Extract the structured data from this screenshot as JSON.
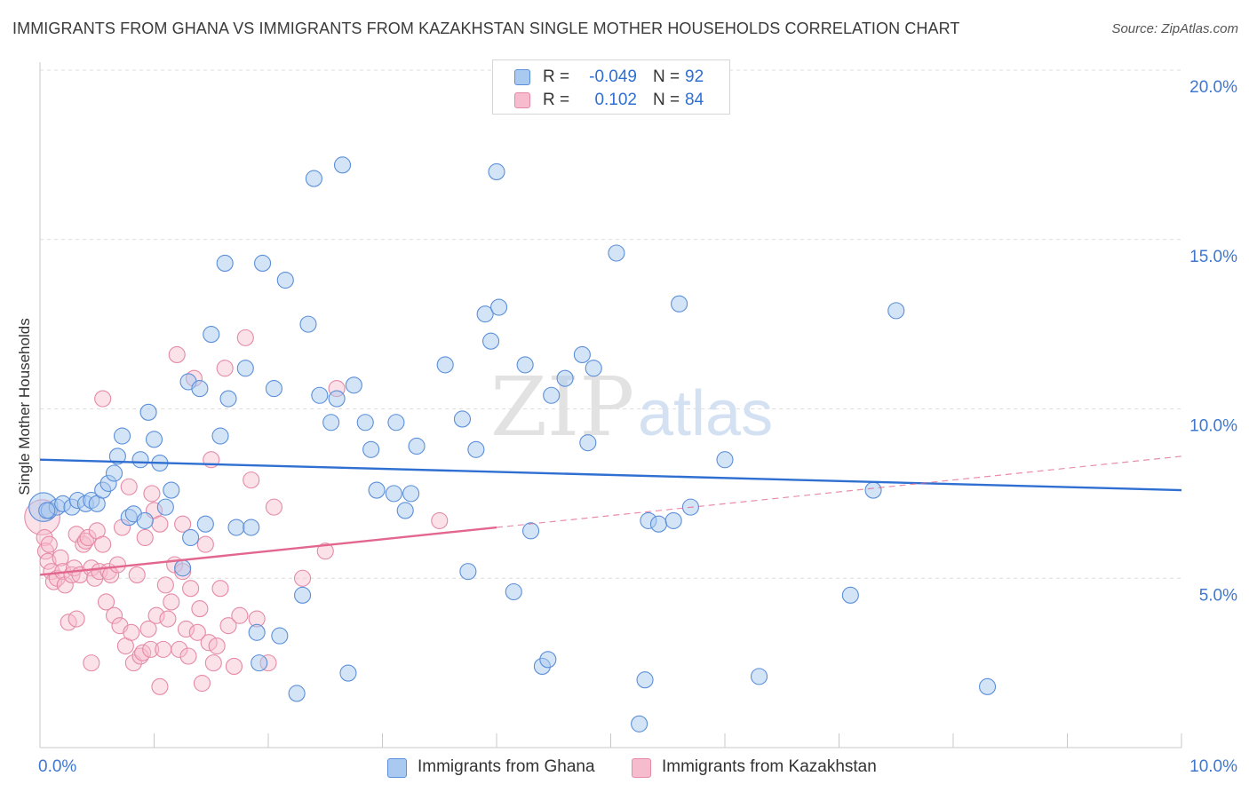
{
  "title": "IMMIGRANTS FROM GHANA VS IMMIGRANTS FROM KAZAKHSTAN SINGLE MOTHER HOUSEHOLDS CORRELATION CHART",
  "source": "Source: ZipAtlas.com",
  "colors": {
    "blue_fill": "#aac9f0",
    "blue_stroke": "#5b8fd9",
    "blue_line": "#2f6fd1",
    "pink_fill": "#f6bccd",
    "pink_stroke": "#e58aa6",
    "pink_line": "#e2668e",
    "axis_label": "#3f77d0",
    "grid": "#dedede"
  },
  "legend": {
    "rows": [
      {
        "r_label": "R =",
        "r_value": "-0.049",
        "n_label": "N =",
        "n_value": "92"
      },
      {
        "r_label": "R =",
        "r_value": "0.102",
        "n_label": "N =",
        "n_value": "84"
      }
    ]
  },
  "bottom_legend": {
    "ghana": "Immigrants from Ghana",
    "kazakhstan": "Immigrants from Kazakhstan"
  },
  "chart_data": {
    "type": "scatter",
    "title": "IMMIGRANTS FROM GHANA VS IMMIGRANTS FROM KAZAKHSTAN SINGLE MOTHER HOUSEHOLDS CORRELATION CHART",
    "xlabel": "",
    "ylabel": "Single Mother Households",
    "xlim": [
      0,
      10
    ],
    "ylim": [
      0,
      20
    ],
    "x_tick_labels": {
      "0": "0.0%",
      "10": "10.0%"
    },
    "y_ticks": [
      5,
      10,
      15,
      20
    ],
    "y_tick_labels": [
      "5.0%",
      "10.0%",
      "15.0%",
      "20.0%"
    ],
    "watermark": {
      "zip": "ZIP",
      "atlas": "atlas"
    },
    "series": [
      {
        "name": "Immigrants from Ghana",
        "color": "blue",
        "R": -0.049,
        "N": 92,
        "trend": {
          "x0": 0,
          "y0": 8.5,
          "x1": 10,
          "y1": 7.6
        },
        "points": [
          [
            0.03,
            7.1,
            1.8
          ],
          [
            0.08,
            7.0,
            1
          ],
          [
            0.15,
            7.1,
            1
          ],
          [
            0.2,
            7.2,
            1
          ],
          [
            0.28,
            7.1,
            1
          ],
          [
            0.33,
            7.3,
            1
          ],
          [
            0.4,
            7.2,
            1
          ],
          [
            0.45,
            7.3,
            1
          ],
          [
            0.5,
            7.2,
            1
          ],
          [
            0.55,
            7.6,
            1
          ],
          [
            0.6,
            7.8,
            1
          ],
          [
            0.65,
            8.1,
            1
          ],
          [
            0.68,
            8.6,
            1
          ],
          [
            0.72,
            9.2,
            1
          ],
          [
            0.78,
            6.8,
            1
          ],
          [
            0.82,
            6.9,
            1
          ],
          [
            0.88,
            8.5,
            1
          ],
          [
            0.92,
            6.7,
            1
          ],
          [
            0.95,
            9.9,
            1
          ],
          [
            1.0,
            9.1,
            1
          ],
          [
            1.05,
            8.4,
            1
          ],
          [
            1.1,
            7.1,
            1
          ],
          [
            1.15,
            7.6,
            1
          ],
          [
            1.25,
            5.3,
            1
          ],
          [
            1.3,
            10.8,
            1
          ],
          [
            1.32,
            6.2,
            1
          ],
          [
            1.4,
            10.6,
            1
          ],
          [
            1.45,
            6.6,
            1
          ],
          [
            1.5,
            12.2,
            1
          ],
          [
            1.58,
            9.2,
            1
          ],
          [
            1.62,
            14.3,
            1
          ],
          [
            1.65,
            10.3,
            1
          ],
          [
            1.72,
            6.5,
            1
          ],
          [
            1.8,
            11.2,
            1
          ],
          [
            1.85,
            6.5,
            1
          ],
          [
            1.9,
            3.4,
            1
          ],
          [
            1.92,
            2.5,
            1
          ],
          [
            1.95,
            14.3,
            1
          ],
          [
            2.05,
            10.6,
            1
          ],
          [
            2.1,
            3.3,
            1
          ],
          [
            2.15,
            13.8,
            1
          ],
          [
            2.25,
            1.6,
            1
          ],
          [
            2.3,
            4.5,
            1
          ],
          [
            2.35,
            12.5,
            1
          ],
          [
            2.4,
            16.8,
            1
          ],
          [
            2.45,
            10.4,
            1
          ],
          [
            2.55,
            9.6,
            1
          ],
          [
            2.6,
            10.3,
            1
          ],
          [
            2.65,
            17.2,
            1
          ],
          [
            2.7,
            2.2,
            1
          ],
          [
            2.75,
            10.7,
            1
          ],
          [
            2.85,
            9.6,
            1
          ],
          [
            2.9,
            8.8,
            1
          ],
          [
            2.95,
            7.6,
            1
          ],
          [
            3.1,
            7.5,
            1
          ],
          [
            3.12,
            9.6,
            1
          ],
          [
            3.2,
            7.0,
            1
          ],
          [
            3.25,
            7.5,
            1
          ],
          [
            3.3,
            8.9,
            1
          ],
          [
            3.55,
            11.3,
            1
          ],
          [
            3.7,
            9.7,
            1
          ],
          [
            3.75,
            5.2,
            1
          ],
          [
            3.82,
            8.8,
            1
          ],
          [
            3.9,
            12.8,
            1
          ],
          [
            3.95,
            12.0,
            1
          ],
          [
            4.0,
            17.0,
            1
          ],
          [
            4.02,
            13.0,
            1
          ],
          [
            4.15,
            4.6,
            1
          ],
          [
            4.25,
            11.3,
            1
          ],
          [
            4.3,
            6.4,
            1
          ],
          [
            4.4,
            2.4,
            1
          ],
          [
            4.45,
            2.6,
            1
          ],
          [
            4.48,
            10.4,
            1
          ],
          [
            4.6,
            10.9,
            1
          ],
          [
            4.75,
            11.6,
            1
          ],
          [
            4.8,
            9.0,
            1
          ],
          [
            4.85,
            11.2,
            1
          ],
          [
            5.05,
            14.6,
            1
          ],
          [
            5.25,
            0.7,
            1
          ],
          [
            5.3,
            2.0,
            1
          ],
          [
            5.33,
            6.7,
            1
          ],
          [
            5.42,
            6.6,
            1
          ],
          [
            5.55,
            6.7,
            1
          ],
          [
            5.6,
            13.1,
            1
          ],
          [
            5.7,
            7.1,
            1
          ],
          [
            6.0,
            8.5,
            1
          ],
          [
            6.3,
            2.1,
            1
          ],
          [
            7.1,
            4.5,
            1
          ],
          [
            7.3,
            7.6,
            1
          ],
          [
            7.5,
            12.9,
            1
          ],
          [
            8.3,
            1.8,
            1
          ],
          [
            0.06,
            7.0,
            1
          ]
        ]
      },
      {
        "name": "Immigrants from Kazakhstan",
        "color": "pink",
        "R": 0.102,
        "N": 84,
        "trend": {
          "x0": 0,
          "y0": 5.1,
          "x1": 10,
          "y1": 8.6
        },
        "trend_solid_until": 4.0,
        "points": [
          [
            0.02,
            6.8,
            2.2
          ],
          [
            0.04,
            6.2,
            1
          ],
          [
            0.05,
            5.8,
            1
          ],
          [
            0.07,
            5.5,
            1
          ],
          [
            0.1,
            5.2,
            1
          ],
          [
            0.12,
            4.9,
            1
          ],
          [
            0.15,
            5.0,
            1
          ],
          [
            0.18,
            5.6,
            1
          ],
          [
            0.2,
            5.2,
            1
          ],
          [
            0.22,
            4.8,
            1
          ],
          [
            0.25,
            3.7,
            1
          ],
          [
            0.28,
            5.1,
            1
          ],
          [
            0.3,
            5.3,
            1
          ],
          [
            0.32,
            6.3,
            1
          ],
          [
            0.35,
            5.1,
            1
          ],
          [
            0.38,
            6.0,
            1
          ],
          [
            0.4,
            6.1,
            1
          ],
          [
            0.42,
            6.2,
            1
          ],
          [
            0.45,
            5.3,
            1
          ],
          [
            0.48,
            5.0,
            1
          ],
          [
            0.5,
            6.4,
            1
          ],
          [
            0.52,
            5.2,
            1
          ],
          [
            0.55,
            6.0,
            1
          ],
          [
            0.58,
            4.3,
            1
          ],
          [
            0.6,
            5.2,
            1
          ],
          [
            0.62,
            5.1,
            1
          ],
          [
            0.65,
            3.9,
            1
          ],
          [
            0.68,
            5.4,
            1
          ],
          [
            0.7,
            3.6,
            1
          ],
          [
            0.72,
            6.5,
            1
          ],
          [
            0.75,
            3.0,
            1
          ],
          [
            0.78,
            7.7,
            1
          ],
          [
            0.8,
            3.4,
            1
          ],
          [
            0.82,
            2.5,
            1
          ],
          [
            0.85,
            5.1,
            1
          ],
          [
            0.88,
            2.7,
            1
          ],
          [
            0.9,
            2.8,
            1
          ],
          [
            0.92,
            6.2,
            1
          ],
          [
            0.95,
            3.5,
            1
          ],
          [
            0.97,
            2.9,
            1
          ],
          [
            1.0,
            7.0,
            1
          ],
          [
            1.02,
            3.9,
            1
          ],
          [
            1.05,
            6.6,
            1
          ],
          [
            1.08,
            2.9,
            1
          ],
          [
            1.1,
            4.8,
            1
          ],
          [
            1.12,
            3.8,
            1
          ],
          [
            1.15,
            4.3,
            1
          ],
          [
            1.18,
            5.4,
            1
          ],
          [
            1.2,
            11.6,
            1
          ],
          [
            1.22,
            2.9,
            1
          ],
          [
            1.25,
            6.6,
            1
          ],
          [
            1.28,
            3.5,
            1
          ],
          [
            1.3,
            2.7,
            1
          ],
          [
            1.32,
            4.7,
            1
          ],
          [
            1.35,
            10.9,
            1
          ],
          [
            1.38,
            3.4,
            1
          ],
          [
            1.4,
            4.1,
            1
          ],
          [
            1.42,
            1.9,
            1
          ],
          [
            1.45,
            6.0,
            1
          ],
          [
            1.48,
            3.1,
            1
          ],
          [
            1.5,
            8.5,
            1
          ],
          [
            1.52,
            2.5,
            1
          ],
          [
            1.55,
            3.0,
            1
          ],
          [
            1.58,
            4.7,
            1
          ],
          [
            1.62,
            11.2,
            1
          ],
          [
            1.65,
            3.6,
            1
          ],
          [
            1.7,
            2.4,
            1
          ],
          [
            1.75,
            3.9,
            1
          ],
          [
            1.8,
            12.1,
            1
          ],
          [
            1.85,
            7.9,
            1
          ],
          [
            1.9,
            3.8,
            1
          ],
          [
            2.0,
            2.5,
            1
          ],
          [
            2.05,
            7.1,
            1
          ],
          [
            2.3,
            5.0,
            1
          ],
          [
            2.6,
            10.6,
            1
          ],
          [
            2.5,
            5.8,
            1
          ],
          [
            3.5,
            6.7,
            1
          ],
          [
            0.55,
            10.3,
            1
          ],
          [
            0.98,
            7.5,
            1
          ],
          [
            0.32,
            3.8,
            1
          ],
          [
            1.05,
            1.8,
            1
          ],
          [
            0.45,
            2.5,
            1
          ],
          [
            1.25,
            5.2,
            1
          ],
          [
            0.08,
            6.0,
            1
          ]
        ]
      }
    ]
  }
}
